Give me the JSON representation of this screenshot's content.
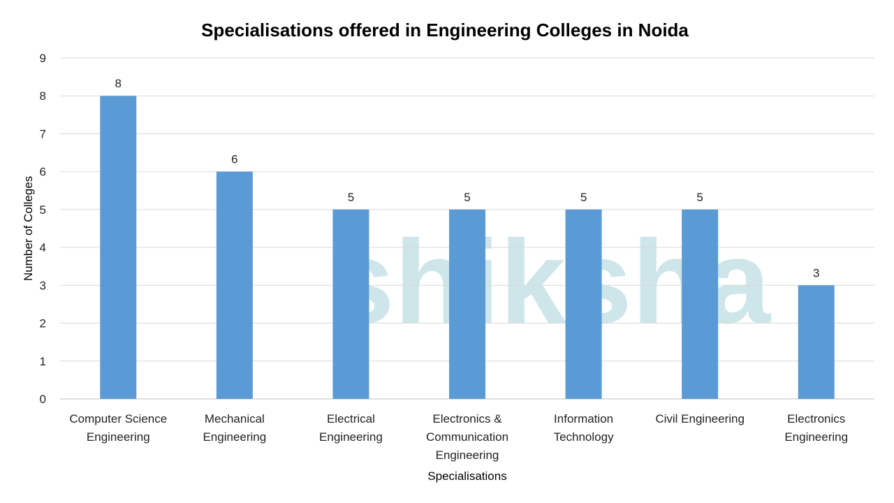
{
  "chart_data": {
    "type": "bar",
    "title": "Specialisations offered in Engineering Colleges in Noida",
    "xlabel": "Specialisations",
    "ylabel": "Number of Colleges",
    "categories": [
      [
        "Computer Science",
        "Engineering"
      ],
      [
        "Mechanical",
        "Engineering"
      ],
      [
        "Electrical",
        "Engineering"
      ],
      [
        "Electronics &",
        "Communication",
        "Engineering"
      ],
      [
        "Information",
        "Technology"
      ],
      [
        "Civil Engineering"
      ],
      [
        "Electronics",
        "Engineering"
      ]
    ],
    "values": [
      8,
      6,
      5,
      5,
      5,
      5,
      3
    ],
    "ylim": [
      0,
      9
    ],
    "yticks": [
      0,
      1,
      2,
      3,
      4,
      5,
      6,
      7,
      8,
      9
    ],
    "grid": true,
    "legend": "none",
    "data_labels": true,
    "bar_color": "#5B9BD5",
    "watermark": "shiksha"
  }
}
